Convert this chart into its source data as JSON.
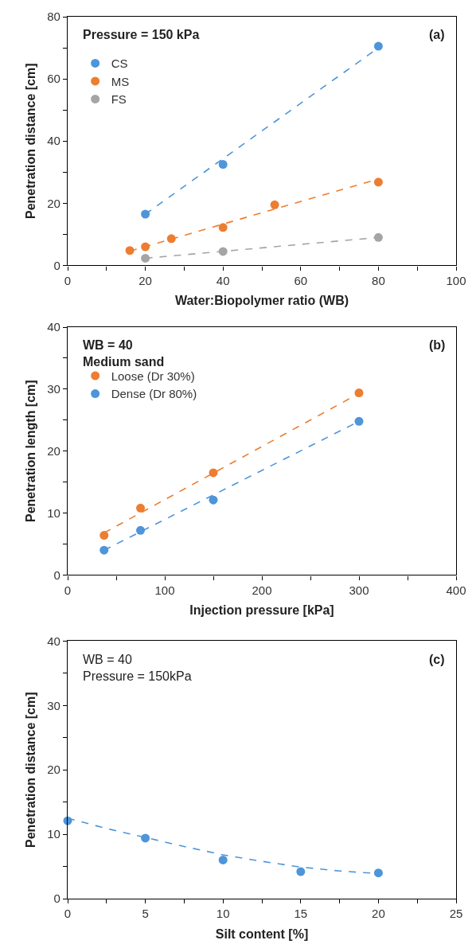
{
  "chart_data": [
    {
      "type": "scatter",
      "xlabel": "Water:Biopolymer ratio (WB)",
      "ylabel": "Penetration distance [cm]",
      "annotations": [
        "Pressure = 150 kPa",
        "(a)"
      ],
      "xlim": [
        0,
        100
      ],
      "ylim": [
        0,
        80
      ],
      "xticks": [
        0,
        {
          "value": 10,
          "label": null
        },
        20,
        {
          "value": 30,
          "label": null
        },
        40,
        {
          "value": 50,
          "label": null
        },
        60,
        {
          "value": 70,
          "label": null
        },
        80,
        {
          "value": 90,
          "label": null
        },
        100
      ],
      "yticks": [
        0,
        {
          "value": 10,
          "label": null
        },
        20,
        {
          "value": 30,
          "label": null
        },
        40,
        {
          "value": 50,
          "label": null
        },
        60,
        {
          "value": 70,
          "label": null
        },
        80
      ],
      "legend": "top left",
      "series": [
        {
          "name": "CS",
          "marker": "circle",
          "color": "#4e95d9",
          "x": [
            20,
            40,
            80
          ],
          "values": [
            16.5,
            32.5,
            70.5
          ]
        },
        {
          "name": "MS",
          "marker": "circle",
          "color": "#ed7d31",
          "x": [
            16,
            20,
            26.7,
            40,
            53.3,
            80
          ],
          "values": [
            4.8,
            6,
            8.6,
            12.2,
            19.5,
            26.8
          ]
        },
        {
          "name": "FS",
          "marker": "circle",
          "color": "#a5a5a5",
          "x": [
            20,
            40,
            80
          ],
          "values": [
            2.3,
            4.5,
            9
          ]
        },
        {
          "type": "line",
          "line_style": "dashed",
          "color": "#4e95d9",
          "x": [
            20,
            80
          ],
          "values": [
            16.5,
            70
          ]
        },
        {
          "type": "line",
          "line_style": "dashed",
          "color": "#ed7d31",
          "x": [
            16,
            80
          ],
          "values": [
            4.6,
            27.8
          ]
        },
        {
          "type": "line",
          "line_style": "dashed",
          "color": "#a5a5a5",
          "x": [
            20,
            80
          ],
          "values": [
            2.3,
            9
          ]
        }
      ]
    },
    {
      "type": "scatter",
      "xlabel": "Injection pressure [kPa]",
      "ylabel": "Penetration length [cm]",
      "annotations": [
        "WB = 40\nMedium sand",
        "(b)"
      ],
      "xlim": [
        0,
        400
      ],
      "ylim": [
        0,
        40
      ],
      "xticks": [
        0,
        {
          "value": 50,
          "label": null
        },
        100,
        {
          "value": 150,
          "label": null
        },
        200,
        {
          "value": 250,
          "label": null
        },
        300,
        {
          "value": 350,
          "label": null
        },
        400
      ],
      "yticks": [
        0,
        {
          "value": 5,
          "label": null
        },
        10,
        {
          "value": 15,
          "label": null
        },
        20,
        {
          "value": 25,
          "label": null
        },
        30,
        {
          "value": 35,
          "label": null
        },
        40
      ],
      "legend": "top left",
      "series": [
        {
          "name": "Loose (Dr 30%)",
          "marker": "circle",
          "color": "#ed7d31",
          "x": [
            37.5,
            75,
            150,
            300
          ],
          "values": [
            6.4,
            10.8,
            16.5,
            29.4
          ]
        },
        {
          "name": "Dense (Dr 80%)",
          "marker": "circle",
          "color": "#4e95d9",
          "x": [
            37.5,
            75,
            150,
            300
          ],
          "values": [
            4,
            7.2,
            12.1,
            24.8
          ]
        },
        {
          "type": "line",
          "line_style": "dashed",
          "color": "#ed7d31",
          "x": [
            37.5,
            300
          ],
          "values": [
            6.8,
            29.3
          ]
        },
        {
          "type": "line",
          "line_style": "dashed",
          "color": "#4e95d9",
          "x": [
            37.5,
            300
          ],
          "values": [
            4,
            24.8
          ]
        }
      ]
    },
    {
      "type": "scatter",
      "xlabel": "Silt content [%]",
      "ylabel": "Penetration distance [cm]",
      "annotations": [
        "WB = 40\nPressure = 150kPa",
        "(c)"
      ],
      "xlim": [
        0,
        25
      ],
      "ylim": [
        0,
        40
      ],
      "xticks": [
        0,
        {
          "value": 2.5,
          "label": null
        },
        5,
        {
          "value": 7.5,
          "label": null
        },
        10,
        {
          "value": 12.5,
          "label": null
        },
        15,
        {
          "value": 17.5,
          "label": null
        },
        20,
        {
          "value": 22.5,
          "label": null
        },
        25
      ],
      "yticks": [
        0,
        {
          "value": 5,
          "label": null
        },
        10,
        {
          "value": 15,
          "label": null
        },
        20,
        {
          "value": 25,
          "label": null
        },
        30,
        {
          "value": 35,
          "label": null
        },
        40
      ],
      "series": [
        {
          "marker": "circle",
          "color": "#4e95d9",
          "x": [
            0,
            5,
            10,
            15,
            20
          ],
          "values": [
            12.1,
            9.4,
            6,
            4.2,
            4
          ]
        },
        {
          "type": "line",
          "line_style": "dashed",
          "color": "#4e95d9",
          "x": [
            0,
            2.5,
            5,
            7.5,
            10,
            12.5,
            15,
            17.5,
            20
          ],
          "values": [
            12.5,
            10.9,
            9.5,
            8.1,
            6.8,
            5.8,
            4.9,
            4.3,
            3.9
          ]
        }
      ]
    }
  ]
}
